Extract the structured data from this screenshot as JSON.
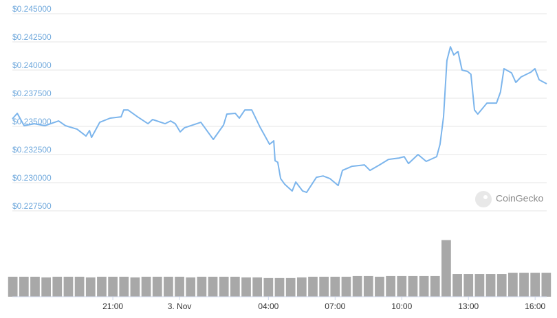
{
  "chart_data": {
    "type": "line",
    "watermark": "CoinGecko",
    "xlim": [
      -7.52,
      16.52
    ],
    "xticks": [
      {
        "value": -3,
        "label": "21:00"
      },
      {
        "value": 0,
        "label": "3. Nov"
      },
      {
        "value": 4,
        "label": "04:00"
      },
      {
        "value": 7,
        "label": "07:00"
      },
      {
        "value": 10,
        "label": "10:00"
      },
      {
        "value": 13,
        "label": "13:00"
      },
      {
        "value": 16,
        "label": "16:00"
      }
    ],
    "ylim": [
      0.2275,
      0.245
    ],
    "yticks": [
      {
        "value": 0.245,
        "label": "$0.245000"
      },
      {
        "value": 0.2425,
        "label": "$0.242500"
      },
      {
        "value": 0.24,
        "label": "$0.240000"
      },
      {
        "value": 0.2375,
        "label": "$0.237500"
      },
      {
        "value": 0.235,
        "label": "$0.235000"
      },
      {
        "value": 0.2325,
        "label": "$0.232500"
      },
      {
        "value": 0.23,
        "label": "$0.230000"
      },
      {
        "value": 0.2275,
        "label": "$0.227500"
      }
    ],
    "y2lim": [
      0,
      100
    ],
    "grid": true,
    "series": [
      {
        "color": "#7cb5ec",
        "x": [
          -7.52,
          -7.3,
          -6.99,
          -6.53,
          -6.06,
          -5.44,
          -5.13,
          -4.61,
          -4.21,
          -4.05,
          -3.96,
          -3.59,
          -3.12,
          -2.63,
          -2.51,
          -2.32,
          -1.89,
          -1.42,
          -1.21,
          -0.65,
          -0.4,
          -0.19,
          0.03,
          0.22,
          0.96,
          1.14,
          1.52,
          1.98,
          2.13,
          2.51,
          2.69,
          2.94,
          3.25,
          3.62,
          4.05,
          4.24,
          4.3,
          4.42,
          4.55,
          4.73,
          5.07,
          5.23,
          5.54,
          5.72,
          6.16,
          6.46,
          6.77,
          7.14,
          7.33,
          7.76,
          8.32,
          8.57,
          9.0,
          9.4,
          9.87,
          10.11,
          10.3,
          10.73,
          11.1,
          11.57,
          11.72,
          11.88,
          12.03,
          12.19,
          12.34,
          12.53,
          12.71,
          12.96,
          13.11,
          13.27,
          13.42,
          13.83,
          14.26,
          14.44,
          14.6,
          14.94,
          15.13,
          15.37,
          15.81,
          15.99,
          16.18,
          16.52
        ],
        "values": [
          0.23567,
          0.23616,
          0.23506,
          0.23524,
          0.23506,
          0.23548,
          0.23506,
          0.23475,
          0.23414,
          0.23463,
          0.23402,
          0.23536,
          0.23573,
          0.23585,
          0.23646,
          0.23646,
          0.23585,
          0.23524,
          0.23561,
          0.23524,
          0.23548,
          0.23524,
          0.23451,
          0.23487,
          0.23536,
          0.23487,
          0.23384,
          0.23512,
          0.23609,
          0.23616,
          0.23573,
          0.23646,
          0.23646,
          0.23494,
          0.23341,
          0.23372,
          0.23195,
          0.23182,
          0.23036,
          0.22987,
          0.22926,
          0.23006,
          0.22926,
          0.22914,
          0.23048,
          0.2306,
          0.23036,
          0.22975,
          0.23109,
          0.23146,
          0.23158,
          0.23109,
          0.23158,
          0.23207,
          0.23219,
          0.23231,
          0.2317,
          0.2325,
          0.23189,
          0.23231,
          0.23341,
          0.23585,
          0.24085,
          0.24207,
          0.24134,
          0.24165,
          0.24,
          0.23988,
          0.23963,
          0.23646,
          0.23609,
          0.23707,
          0.23707,
          0.23805,
          0.24012,
          0.23975,
          0.2389,
          0.23939,
          0.23982,
          0.24012,
          0.23914,
          0.23878
        ]
      },
      {
        "color": "#a8a8a8",
        "axis": "y2",
        "type": "bar",
        "x": [
          -7.5,
          -7,
          -6.5,
          -6,
          -5.5,
          -5,
          -4.5,
          -4,
          -3.5,
          -3,
          -2.5,
          -2,
          -1.5,
          -1,
          -0.5,
          0,
          0.5,
          1,
          1.5,
          2,
          2.5,
          3,
          3.5,
          4,
          4.5,
          5,
          5.5,
          6,
          6.5,
          7,
          7.5,
          8,
          8.5,
          9,
          9.5,
          10,
          10.5,
          11,
          11.5,
          12,
          12.5,
          13,
          13.5,
          14,
          14.5,
          15,
          15.5,
          16,
          16.5
        ],
        "values": [
          30,
          30,
          30,
          29,
          30,
          30,
          30,
          29,
          30,
          30,
          30,
          29,
          30,
          30,
          30,
          30,
          29,
          30,
          30,
          30,
          30,
          29,
          29,
          28,
          28,
          28,
          29,
          30,
          30,
          30,
          30,
          31,
          31,
          30,
          31,
          31,
          31,
          31,
          31,
          85,
          34,
          34,
          34,
          34,
          34,
          36,
          36,
          36,
          36
        ]
      }
    ]
  }
}
